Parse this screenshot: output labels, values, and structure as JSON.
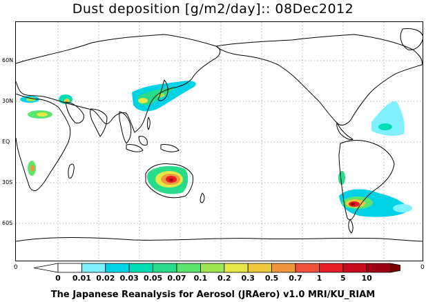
{
  "title": "Dust deposition [g/m2/day]:: 08Dec2012",
  "footer": "The Japanese Reanalysis for Aerosol (JRAero) v1.0 MRI/KU_RIAM",
  "lat_labels": [
    "60N",
    "30N",
    "EQ",
    "30S",
    "60S"
  ],
  "axis_edge_labels": {
    "left": "0",
    "right": "0"
  },
  "colorbar": {
    "labels": [
      "0",
      "0.01",
      "0.02",
      "0.03",
      "0.05",
      "0.07",
      "0.1",
      "0.2",
      "0.3",
      "0.5",
      "0.7",
      "1",
      "5",
      "10"
    ],
    "colors": [
      "#ffffff",
      "#80f0ff",
      "#00d2e6",
      "#00dcb4",
      "#28dc8c",
      "#5ae66e",
      "#a0e650",
      "#e6e646",
      "#f0c83c",
      "#f0963c",
      "#f0503c",
      "#e61e28",
      "#c80a1e",
      "#a00014"
    ],
    "under_color": "#ffffff",
    "over_color": "#780000"
  }
}
